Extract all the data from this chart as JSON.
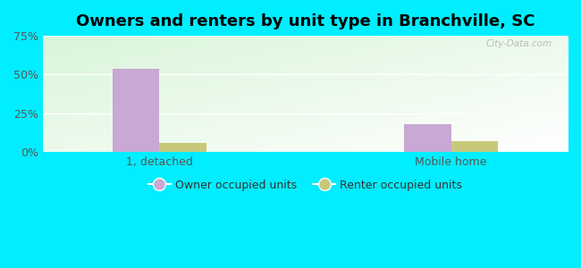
{
  "title": "Owners and renters by unit type in Branchville, SC",
  "categories": [
    "1, detached",
    "Mobile home"
  ],
  "owner_values": [
    54.0,
    18.0
  ],
  "renter_values": [
    6.0,
    7.0
  ],
  "owner_color": "#c9a8d4",
  "renter_color": "#c8c87a",
  "ylim": [
    0,
    75
  ],
  "yticks": [
    0,
    25,
    50,
    75
  ],
  "ytick_labels": [
    "0%",
    "25%",
    "50%",
    "75%"
  ],
  "background_outer": "#00eeff",
  "legend_owner": "Owner occupied units",
  "legend_renter": "Renter occupied units",
  "bar_width": 0.32,
  "group_positions": [
    1.0,
    3.0
  ],
  "watermark": "City-Data.com",
  "title_fontsize": 13,
  "grid_color": "#dddddd",
  "bg_top_left": "#d4edda",
  "bg_bottom_right": "#f0f9e8"
}
